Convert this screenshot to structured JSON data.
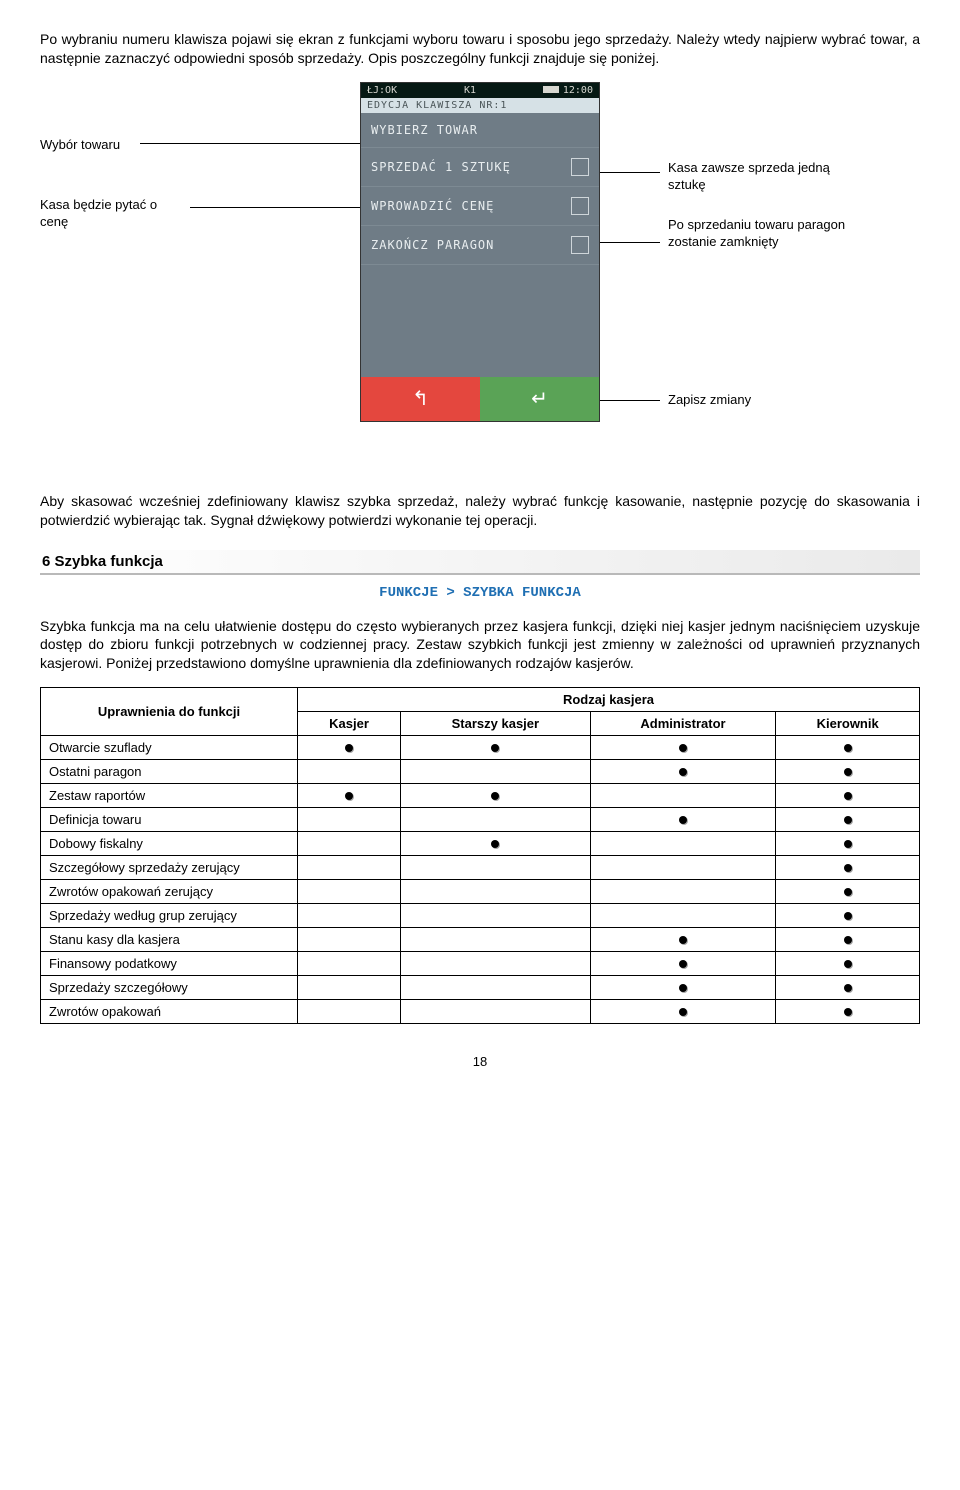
{
  "intro": "Po wybraniu numeru klawisza pojawi się ekran z funkcjami wyboru towaru i sposobu jego sprzedaży. Należy wtedy najpierw wybrać towar, a następnie zaznaczyć odpowiedni sposób sprzedaży. Opis poszczególny funkcji znajduje się poniżej.",
  "diagram": {
    "left1": "Wybór towaru",
    "left2": "Kasa będzie pytać o cenę",
    "right1": "Kasa zawsze sprzeda jedną sztukę",
    "right2": "Po sprzedaniu towaru paragon zostanie zamknięty",
    "right3": "Zapisz zmiany",
    "phone": {
      "status_left": "ŁJ:OK",
      "status_mid": "K1",
      "status_right": "12:00",
      "subtitle": "EDYCJA KLAWISZA NR:1",
      "rows": [
        "WYBIERZ TOWAR",
        "SPRZEDAĆ 1 SZTUKĘ",
        "WPROWADZIĆ CENĘ",
        "ZAKOŃCZ PARAGON"
      ],
      "back_glyph": "↰",
      "enter_glyph": "↵"
    }
  },
  "mid_para": "Aby skasować wcześniej zdefiniowany klawisz szybka sprzedaż, należy wybrać funkcję kasowanie, następnie pozycję do skasowania i potwierdzić wybierając tak. Sygnał dźwiękowy potwierdzi wykonanie tej operacji.",
  "section": {
    "heading": "6 Szybka funkcja",
    "breadcrumb": "FUNKCJE > SZYBKA FUNKCJA",
    "body": "Szybka funkcja ma na celu ułatwienie dostępu do często wybieranych przez kasjera funkcji, dzięki niej kasjer jednym naciśnięciem uzyskuje dostęp do zbioru funkcji potrzebnych w codziennej pracy. Zestaw szybkich funkcji jest zmienny w zależności od uprawnień przyznanych kasjerowi. Poniżej przedstawiono domyślne uprawnienia dla zdefiniowanych rodzajów kasjerów."
  },
  "table": {
    "header_left": "Uprawnienia do funkcji",
    "header_group": "Rodzaj kasjera",
    "cols": [
      "Kasjer",
      "Starszy kasjer",
      "Administrator",
      "Kierownik"
    ],
    "rows": [
      {
        "label": "Otwarcie szuflady",
        "cells": [
          true,
          true,
          true,
          true
        ]
      },
      {
        "label": "Ostatni paragon",
        "cells": [
          false,
          false,
          true,
          true
        ]
      },
      {
        "label": "Zestaw raportów",
        "cells": [
          true,
          true,
          false,
          true
        ]
      },
      {
        "label": "Definicja towaru",
        "cells": [
          false,
          false,
          true,
          true
        ]
      },
      {
        "label": "Dobowy fiskalny",
        "cells": [
          false,
          true,
          false,
          true
        ]
      },
      {
        "label": "Szczegółowy sprzedaży zerujący",
        "cells": [
          false,
          false,
          false,
          true
        ]
      },
      {
        "label": "Zwrotów opakowań zerujący",
        "cells": [
          false,
          false,
          false,
          true
        ]
      },
      {
        "label": "Sprzedaży według grup zerujący",
        "cells": [
          false,
          false,
          false,
          true
        ]
      },
      {
        "label": "Stanu kasy dla kasjera",
        "cells": [
          false,
          false,
          true,
          true
        ]
      },
      {
        "label": "Finansowy podatkowy",
        "cells": [
          false,
          false,
          true,
          true
        ]
      },
      {
        "label": "Sprzedaży szczegółowy",
        "cells": [
          false,
          false,
          true,
          true
        ]
      },
      {
        "label": "Zwrotów opakowań",
        "cells": [
          false,
          false,
          true,
          true
        ]
      }
    ]
  },
  "page_number": "18"
}
